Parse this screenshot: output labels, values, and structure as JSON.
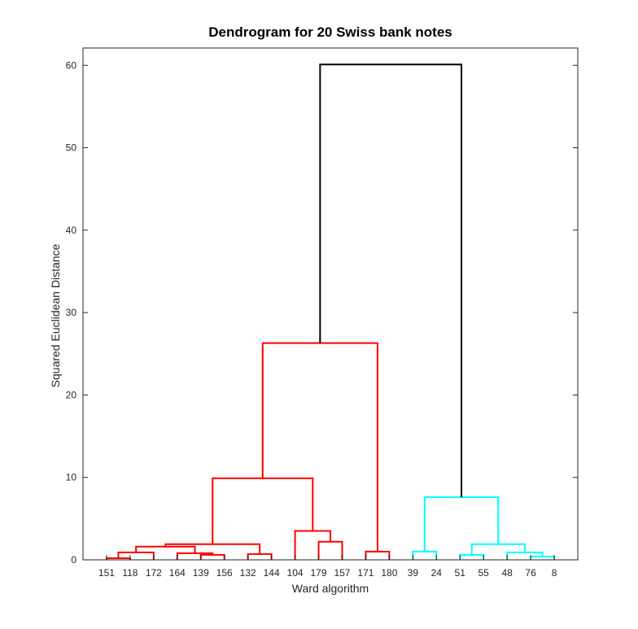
{
  "chart_data": {
    "type": "dendrogram",
    "title": "Dendrogram for 20 Swiss bank notes",
    "xlabel": "Ward algorithm",
    "ylabel": "Squared Euclidean Distance",
    "ylim": [
      0,
      62.1
    ],
    "yticks": [
      0,
      10,
      20,
      30,
      40,
      50,
      60
    ],
    "leaves": [
      "151",
      "118",
      "172",
      "164",
      "139",
      "156",
      "132",
      "144",
      "104",
      "179",
      "157",
      "171",
      "180",
      "39",
      "24",
      "51",
      "55",
      "48",
      "76",
      "8"
    ],
    "links": [
      {
        "left": 0,
        "right": 1,
        "height": 0.2,
        "color": "red"
      },
      {
        "left": "L0",
        "right": 2,
        "height": 0.9,
        "color": "red"
      },
      {
        "left": 4,
        "right": 5,
        "height": 0.6,
        "color": "red"
      },
      {
        "left": 3,
        "right": "L2",
        "height": 0.8,
        "color": "red"
      },
      {
        "left": "L1",
        "right": "L3",
        "height": 1.6,
        "color": "red"
      },
      {
        "left": 6,
        "right": 7,
        "height": 0.7,
        "color": "red"
      },
      {
        "left": "L4",
        "right": "L5",
        "height": 1.9,
        "color": "red"
      },
      {
        "left": 9,
        "right": 10,
        "height": 2.2,
        "color": "red"
      },
      {
        "left": 8,
        "right": "L7",
        "height": 3.5,
        "color": "red"
      },
      {
        "left": "L6",
        "right": "L8",
        "height": 9.9,
        "color": "red"
      },
      {
        "left": 11,
        "right": 12,
        "height": 1.0,
        "color": "red"
      },
      {
        "left": "L9",
        "right": "L10",
        "height": 26.3,
        "color": "red"
      },
      {
        "left": 13,
        "right": 14,
        "height": 1.0,
        "color": "cyan"
      },
      {
        "left": 15,
        "right": 16,
        "height": 0.6,
        "color": "cyan"
      },
      {
        "left": 18,
        "right": 19,
        "height": 0.4,
        "color": "cyan"
      },
      {
        "left": 17,
        "right": "L14",
        "height": 0.9,
        "color": "cyan"
      },
      {
        "left": "L13",
        "right": "L15",
        "height": 1.9,
        "color": "cyan"
      },
      {
        "left": "L12",
        "right": "L16",
        "height": 7.6,
        "color": "cyan"
      },
      {
        "left": "L11",
        "right": "L17",
        "height": 60.1,
        "color": "black"
      }
    ],
    "colors": {
      "red": "#ff0000",
      "cyan": "#00ffff",
      "black": "#000000"
    },
    "grid": false
  }
}
